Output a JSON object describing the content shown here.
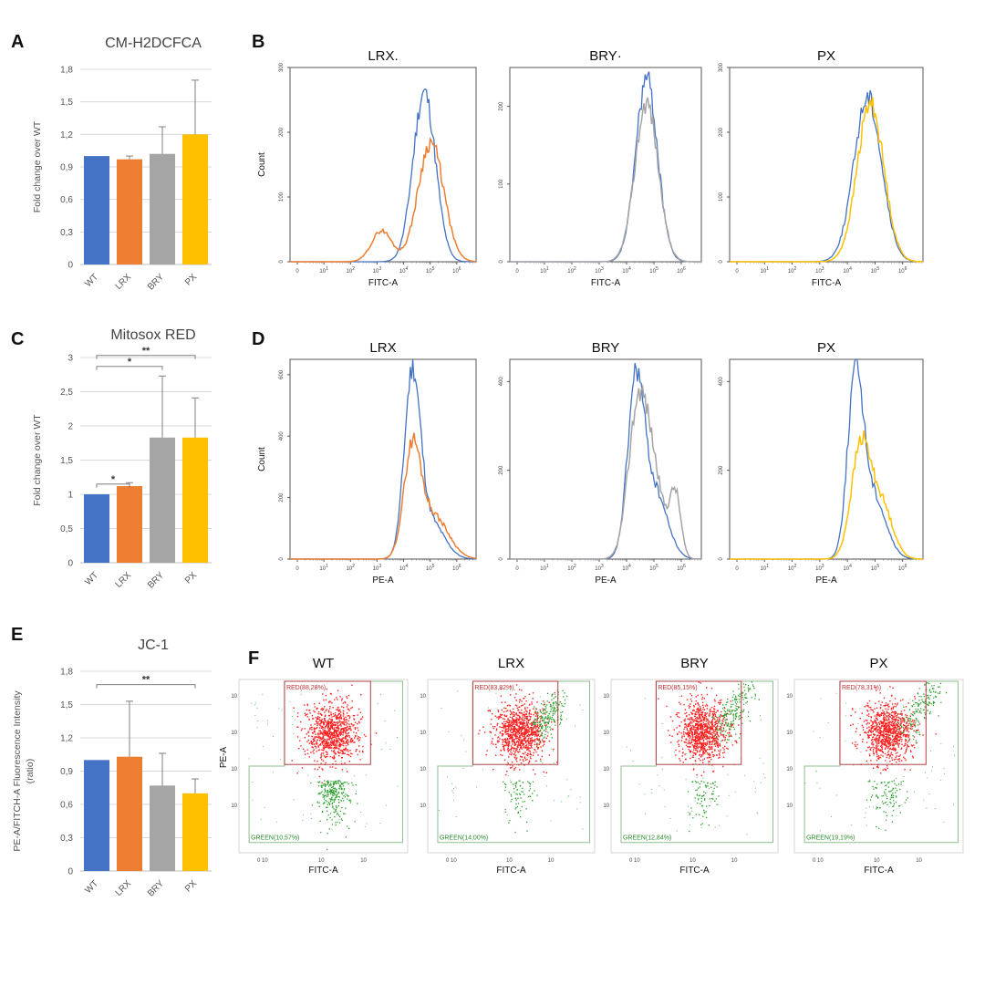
{
  "panels": {
    "A": "A",
    "B": "B",
    "C": "C",
    "D": "D",
    "E": "E",
    "F": "F"
  },
  "colors": {
    "WT": "#4472c4",
    "LRX": "#ed7d31",
    "BRY": "#a5a5a5",
    "PX": "#ffc000",
    "flowRed": "#ff1f1f",
    "flowGreen": "#2ca02c"
  },
  "chart_data": [
    {
      "id": "A",
      "type": "bar",
      "title": "CM-H2DCFCA",
      "ylabel": "Fold change over WT",
      "categories": [
        "WT",
        "LRX",
        "BRY",
        "PX"
      ],
      "values": [
        1.0,
        0.97,
        1.02,
        1.2
      ],
      "errors": [
        0.0,
        0.03,
        0.25,
        0.5
      ],
      "ylim": [
        0,
        1.8
      ],
      "yticks": [
        "0",
        "0,3",
        "0,6",
        "0,9",
        "1,2",
        "1,5",
        "1,8"
      ],
      "yticks_values": [
        0,
        0.3,
        0.6,
        0.9,
        1.2,
        1.5,
        1.8
      ],
      "significance": []
    },
    {
      "id": "C",
      "type": "bar",
      "title": "Mitosox RED",
      "ylabel": "Fold change over WT",
      "categories": [
        "WT",
        "LRX",
        "BRY",
        "PX"
      ],
      "values": [
        1.0,
        1.12,
        1.83,
        1.83
      ],
      "errors": [
        0.0,
        0.05,
        0.9,
        0.58
      ],
      "ylim": [
        0,
        3
      ],
      "yticks": [
        "0",
        "0,5",
        "1",
        "1,5",
        "2",
        "2,5",
        "3"
      ],
      "yticks_values": [
        0,
        0.5,
        1,
        1.5,
        2,
        2.5,
        3
      ],
      "significance": [
        {
          "from": 0,
          "to": 1,
          "label": "*",
          "level": 1.15
        },
        {
          "from": 0,
          "to": 2,
          "label": "*",
          "level": 2.87
        },
        {
          "from": 0,
          "to": 3,
          "label": "**",
          "level": 3.03
        }
      ]
    },
    {
      "id": "E",
      "type": "bar",
      "title": "JC-1",
      "ylabel": "PE-A/FITCH-A Fluorescence Intensity",
      "ylabel2": "(ratio)",
      "categories": [
        "WT",
        "LRX",
        "BRY",
        "PX"
      ],
      "values": [
        1.0,
        1.03,
        0.77,
        0.7
      ],
      "errors": [
        0.0,
        0.5,
        0.29,
        0.13
      ],
      "ylim": [
        0,
        1.8
      ],
      "yticks": [
        "0",
        "0,3",
        "0,6",
        "0,9",
        "1,2",
        "1,5",
        "1,8"
      ],
      "yticks_values": [
        0,
        0.3,
        0.6,
        0.9,
        1.2,
        1.5,
        1.8
      ],
      "significance": [
        {
          "from": 0,
          "to": 3,
          "label": "**",
          "level": 1.68
        }
      ]
    },
    {
      "id": "B",
      "type": "line",
      "subtype": "histogram-overlay",
      "xlabel": "FITC-A",
      "ylabel": "Count",
      "xticks": [
        "0",
        "10",
        "10",
        "10",
        "10",
        "10",
        "10"
      ],
      "xtick_exponents": [
        "",
        "1",
        "2",
        "3",
        "4",
        "5",
        "6"
      ],
      "plots": [
        {
          "title": "LRX",
          "title_mark": ".",
          "ymax": 300,
          "yticks": [
            0,
            100,
            200,
            300
          ],
          "reference": {
            "name": "WT",
            "peaks": [
              {
                "x": 5.05,
                "h": 262,
                "w": 0.42
              }
            ]
          },
          "sample": {
            "name": "LRX",
            "peaks": [
              {
                "x": 5.3,
                "h": 185,
                "w": 0.48
              },
              {
                "x": 3.45,
                "h": 48,
                "w": 0.38
              }
            ]
          }
        },
        {
          "title": "BRY",
          "title_mark": "·",
          "ymax": 250,
          "yticks": [
            0,
            100,
            200
          ],
          "reference": {
            "name": "WT",
            "peaks": [
              {
                "x": 5.0,
                "h": 235,
                "w": 0.4
              }
            ]
          },
          "sample": {
            "name": "BRY",
            "peaks": [
              {
                "x": 5.0,
                "h": 205,
                "w": 0.42
              }
            ]
          }
        },
        {
          "title": "PX",
          "title_mark": "",
          "ymax": 300,
          "yticks": [
            0,
            100,
            200,
            300
          ],
          "reference": {
            "name": "WT",
            "peaks": [
              {
                "x": 5.0,
                "h": 255,
                "w": 0.5
              }
            ]
          },
          "sample": {
            "name": "PX",
            "peaks": [
              {
                "x": 5.1,
                "h": 245,
                "w": 0.48
              }
            ]
          }
        }
      ]
    },
    {
      "id": "D",
      "type": "line",
      "subtype": "histogram-overlay",
      "xlabel": "PE-A",
      "ylabel": "Count",
      "xticks": [
        "0",
        "10",
        "10",
        "10",
        "10",
        "10",
        "10"
      ],
      "xtick_exponents": [
        "",
        "1",
        "2",
        "3",
        "4",
        "5",
        "6"
      ],
      "plots": [
        {
          "title": "LRX",
          "title_mark": "",
          "ymax": 650,
          "yticks": [
            0,
            200,
            400,
            600
          ],
          "reference": {
            "name": "WT",
            "peaks": [
              {
                "x": 4.6,
                "h": 580,
                "w": 0.3
              },
              {
                "x": 5.3,
                "h": 120,
                "w": 0.5
              }
            ]
          },
          "sample": {
            "name": "LRX",
            "peaks": [
              {
                "x": 4.6,
                "h": 340,
                "w": 0.32
              },
              {
                "x": 5.4,
                "h": 140,
                "w": 0.55
              }
            ]
          }
        },
        {
          "title": "BRY",
          "title_mark": "",
          "ymax": 450,
          "yticks": [
            0,
            200,
            400
          ],
          "reference": {
            "name": "WT",
            "peaks": [
              {
                "x": 4.6,
                "h": 380,
                "w": 0.3
              },
              {
                "x": 5.3,
                "h": 150,
                "w": 0.45
              }
            ]
          },
          "sample": {
            "name": "BRY",
            "peaks": [
              {
                "x": 4.65,
                "h": 290,
                "w": 0.35
              },
              {
                "x": 5.2,
                "h": 190,
                "w": 0.4
              },
              {
                "x": 6.05,
                "h": 140,
                "w": 0.2
              }
            ]
          }
        },
        {
          "title": "PX",
          "title_mark": "",
          "ymax": 450,
          "yticks": [
            0,
            200,
            400
          ],
          "reference": {
            "name": "WT",
            "peaks": [
              {
                "x": 4.55,
                "h": 390,
                "w": 0.28
              },
              {
                "x": 5.2,
                "h": 140,
                "w": 0.45
              }
            ]
          },
          "sample": {
            "name": "PX",
            "peaks": [
              {
                "x": 4.75,
                "h": 250,
                "w": 0.35
              },
              {
                "x": 5.5,
                "h": 120,
                "w": 0.4
              }
            ]
          }
        }
      ]
    },
    {
      "id": "F",
      "type": "scatter",
      "subtype": "flow-cytometry",
      "xlabel": "FITC-A",
      "ylabel": "PE-A",
      "plots": [
        {
          "title": "WT",
          "red_gate": "RED(88,28%)",
          "green_gate": "GREEN(10,57%)",
          "spread": 0.0
        },
        {
          "title": "LRX",
          "red_gate": "RED(83,82%)",
          "green_gate": "GREEN(14,00%)",
          "spread": 0.6
        },
        {
          "title": "BRY",
          "red_gate": "RED(85,15%)",
          "green_gate": "GREEN(12,84%)",
          "spread": 0.8
        },
        {
          "title": "PX",
          "red_gate": "RED(78,31%)",
          "green_gate": "GREEN(19,19%)",
          "spread": 0.9
        }
      ]
    }
  ]
}
